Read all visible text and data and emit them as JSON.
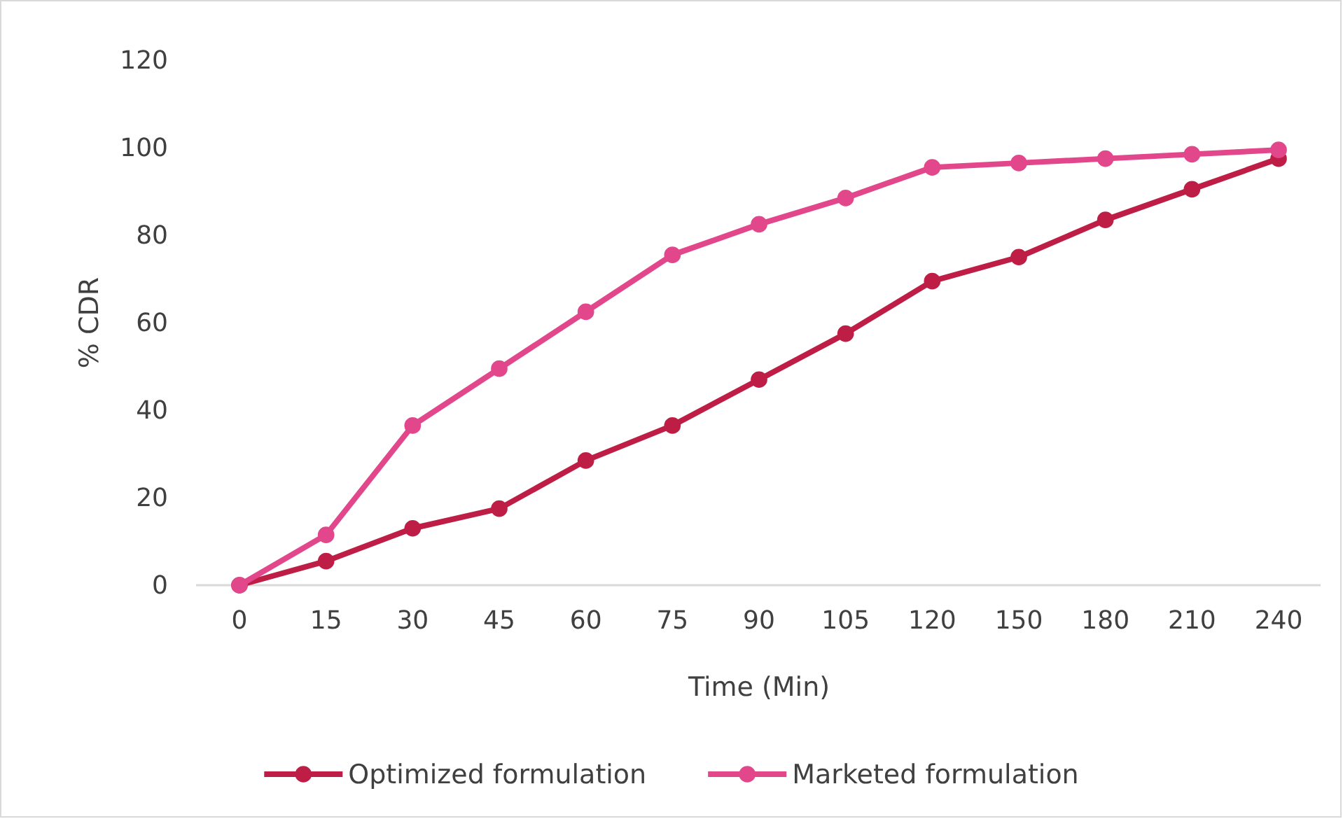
{
  "chart_data": {
    "type": "line",
    "xlabel": "Time (Min)",
    "ylabel": "% CDR",
    "categories": [
      "0",
      "15",
      "30",
      "45",
      "60",
      "75",
      "90",
      "105",
      "120",
      "150",
      "180",
      "210",
      "240"
    ],
    "series": [
      {
        "name": "Optimized formulation",
        "color": "#be1e45",
        "values": [
          0,
          5.5,
          13,
          17.5,
          28.5,
          36.5,
          47,
          57.5,
          69.5,
          75,
          83.5,
          90.5,
          97.5
        ]
      },
      {
        "name": "Marketed formulation",
        "color": "#e2478c",
        "values": [
          0,
          11.5,
          36.5,
          49.5,
          62.5,
          75.5,
          82.5,
          88.5,
          95.5,
          96.5,
          97.5,
          98.5,
          99.5
        ]
      }
    ],
    "ylim": [
      0,
      120
    ],
    "yticks": [
      0,
      20,
      40,
      60,
      80,
      100,
      120
    ],
    "grid": false,
    "legend": "bottom",
    "marker": "circle",
    "line_style": "solid"
  }
}
